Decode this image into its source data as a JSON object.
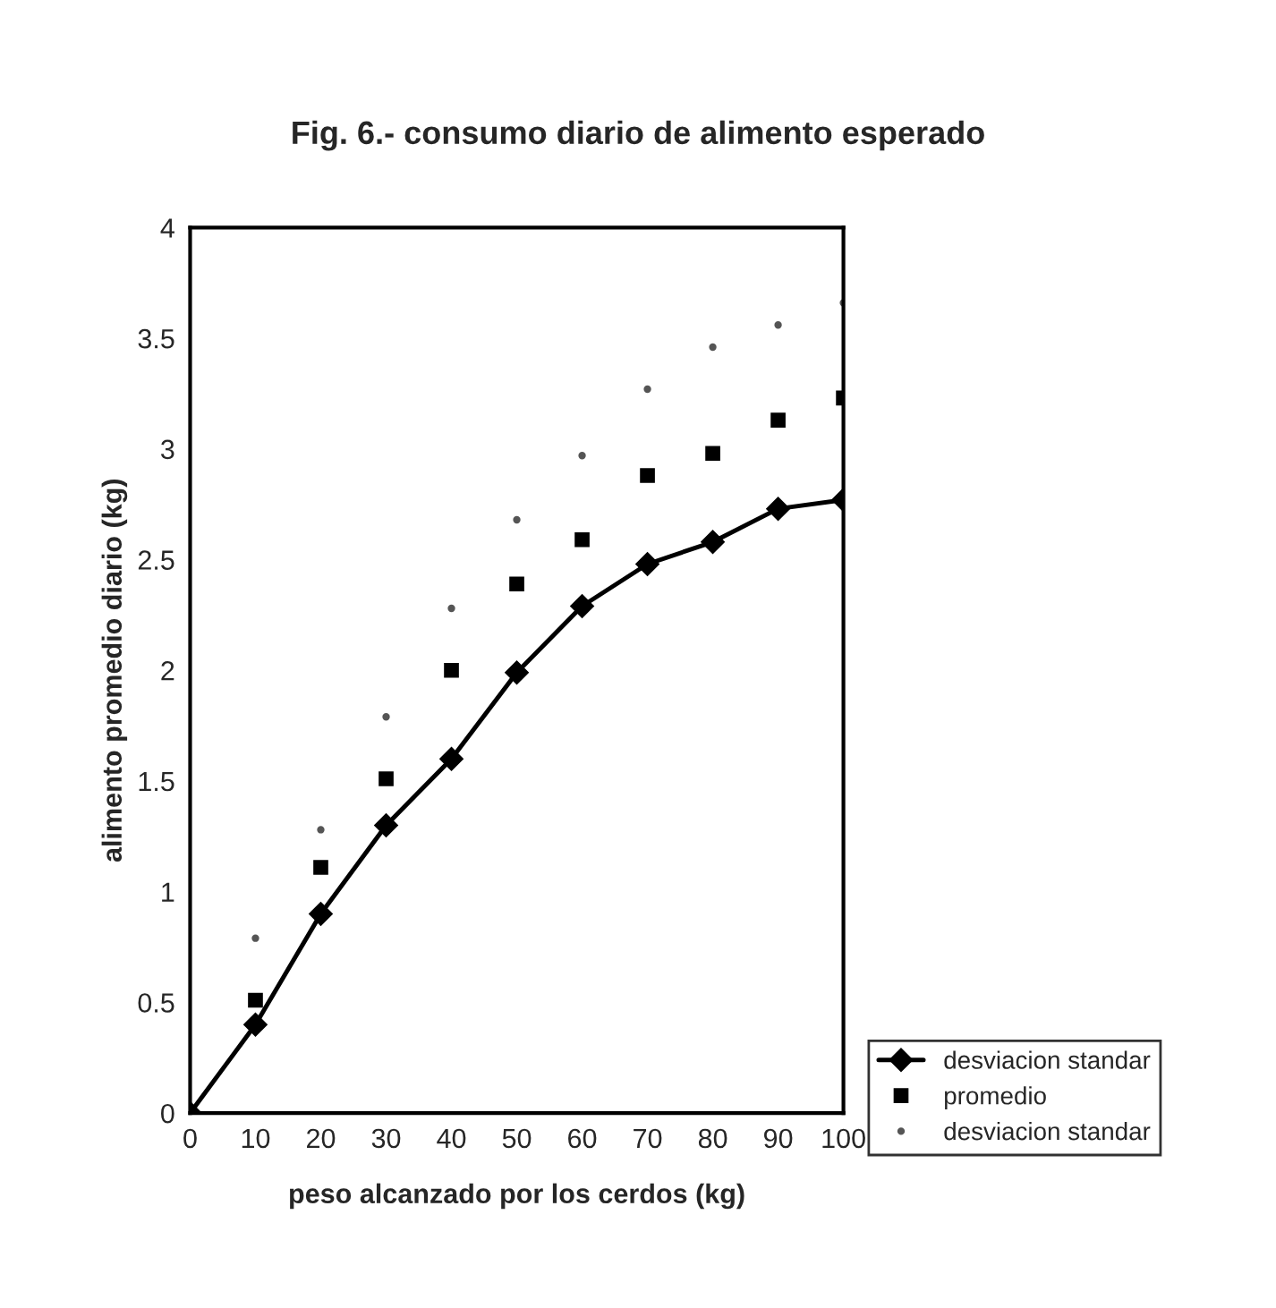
{
  "chart_data": {
    "type": "line",
    "title": "Fig. 6.- consumo diario de alimento esperado",
    "xlabel": "peso alcanzado por los cerdos (kg)",
    "ylabel": "alimento promedio diario (kg)",
    "xlim": [
      0,
      100
    ],
    "xticks": [
      0,
      10,
      20,
      30,
      40,
      50,
      60,
      70,
      80,
      90,
      100
    ],
    "ylim": [
      0,
      4
    ],
    "yticks": [
      0,
      0.5,
      1,
      1.5,
      2,
      2.5,
      3,
      3.5,
      4
    ],
    "grid": false,
    "legend": "bottom right",
    "series": [
      {
        "name": "desviacion standar",
        "type": "line",
        "color": "#000000",
        "marker": "diamond",
        "line_style": "solid",
        "x": [
          0,
          10,
          20,
          30,
          40,
          50,
          60,
          70,
          80,
          90,
          100
        ],
        "values": [
          0,
          0.4,
          0.9,
          1.3,
          1.6,
          1.99,
          2.29,
          2.48,
          2.58,
          2.73,
          2.77
        ]
      },
      {
        "name": "promedio",
        "type": "scatter",
        "color": "#000000",
        "marker": "square",
        "x": [
          10,
          20,
          30,
          40,
          50,
          60,
          70,
          80,
          90,
          100
        ],
        "values": [
          0.51,
          1.11,
          1.51,
          2.0,
          2.39,
          2.59,
          2.88,
          2.98,
          3.13,
          3.23
        ]
      },
      {
        "name": "desviacion standar",
        "type": "scatter",
        "color": "#555555",
        "marker": "circle",
        "x": [
          10,
          20,
          30,
          40,
          50,
          60,
          70,
          80,
          90,
          100
        ],
        "values": [
          0.79,
          1.28,
          1.79,
          2.28,
          2.68,
          2.97,
          3.27,
          3.46,
          3.56,
          3.66
        ]
      }
    ]
  }
}
